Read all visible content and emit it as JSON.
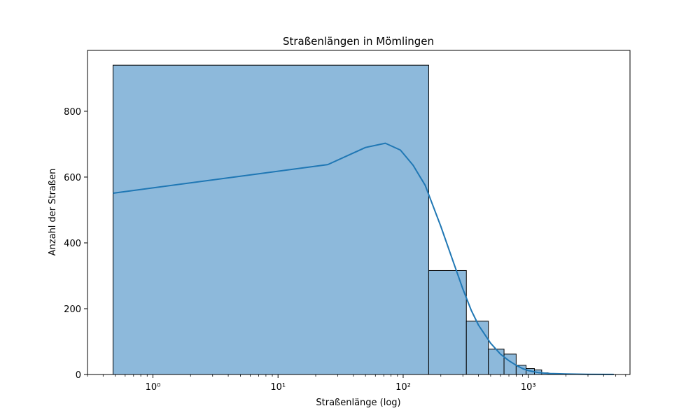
{
  "chart_data": {
    "type": "bar",
    "title": "Straßenlängen in Mömlingen",
    "xlabel": "Straßenlänge (log)",
    "ylabel": "Anzahl der Straßen",
    "x_scale": "log",
    "xlim": [
      0.3,
      6500
    ],
    "ylim": [
      0,
      985
    ],
    "x_ticks": [
      {
        "value": 1,
        "label": "10⁰"
      },
      {
        "value": 10,
        "label": "10¹"
      },
      {
        "value": 100,
        "label": "10²"
      },
      {
        "value": 1000,
        "label": "10³"
      }
    ],
    "y_ticks": [
      {
        "value": 0,
        "label": "0"
      },
      {
        "value": 200,
        "label": "200"
      },
      {
        "value": 400,
        "label": "400"
      },
      {
        "value": 600,
        "label": "600"
      },
      {
        "value": 800,
        "label": "800"
      }
    ],
    "bars": [
      {
        "x0": 0.48,
        "x1": 160,
        "value": 940
      },
      {
        "x0": 160,
        "x1": 320,
        "value": 316
      },
      {
        "x0": 320,
        "x1": 480,
        "value": 162
      },
      {
        "x0": 480,
        "x1": 640,
        "value": 77
      },
      {
        "x0": 640,
        "x1": 800,
        "value": 62
      },
      {
        "x0": 800,
        "x1": 960,
        "value": 28
      },
      {
        "x0": 960,
        "x1": 1120,
        "value": 18
      },
      {
        "x0": 1120,
        "x1": 1280,
        "value": 14
      },
      {
        "x0": 1280,
        "x1": 1440,
        "value": 5
      },
      {
        "x0": 1440,
        "x1": 1600,
        "value": 3
      },
      {
        "x0": 1600,
        "x1": 1760,
        "value": 2
      },
      {
        "x0": 1760,
        "x1": 1920,
        "value": 2
      },
      {
        "x0": 1920,
        "x1": 2080,
        "value": 1
      },
      {
        "x0": 2080,
        "x1": 2240,
        "value": 1
      },
      {
        "x0": 2240,
        "x1": 2400,
        "value": 1
      },
      {
        "x0": 2400,
        "x1": 2560,
        "value": 1
      },
      {
        "x0": 2560,
        "x1": 2720,
        "value": 1
      },
      {
        "x0": 2720,
        "x1": 2880,
        "value": 1
      },
      {
        "x0": 2880,
        "x1": 3040,
        "value": 1
      },
      {
        "x0": 3040,
        "x1": 3200,
        "value": 1
      },
      {
        "x0": 3200,
        "x1": 3360,
        "value": 1
      },
      {
        "x0": 3360,
        "x1": 3520,
        "value": 1
      },
      {
        "x0": 3520,
        "x1": 3680,
        "value": 1
      },
      {
        "x0": 3680,
        "x1": 3840,
        "value": 1
      },
      {
        "x0": 3840,
        "x1": 4000,
        "value": 1
      },
      {
        "x0": 4000,
        "x1": 4160,
        "value": 1
      },
      {
        "x0": 4160,
        "x1": 4320,
        "value": 1
      },
      {
        "x0": 4320,
        "x1": 4480,
        "value": 1
      },
      {
        "x0": 4480,
        "x1": 4640,
        "value": 1
      },
      {
        "x0": 4640,
        "x1": 4800,
        "value": 1
      }
    ],
    "kde": {
      "x": [
        0.48,
        25,
        50,
        72,
        95,
        120,
        150,
        200,
        250,
        300,
        350,
        400,
        500,
        600,
        700,
        800,
        900,
        1000,
        1200,
        1500,
        2000,
        3000,
        4800
      ],
      "y": [
        551,
        638,
        690,
        703,
        682,
        636,
        575,
        450,
        345,
        260,
        195,
        150,
        95,
        62,
        42,
        28,
        18,
        12,
        6,
        3,
        1.5,
        0.5,
        0.2
      ]
    },
    "colors": {
      "bar_fill": "#8db9db",
      "bar_edge": "#000000",
      "kde_line": "#1f77b4",
      "axis": "#000000"
    },
    "grid": false
  }
}
